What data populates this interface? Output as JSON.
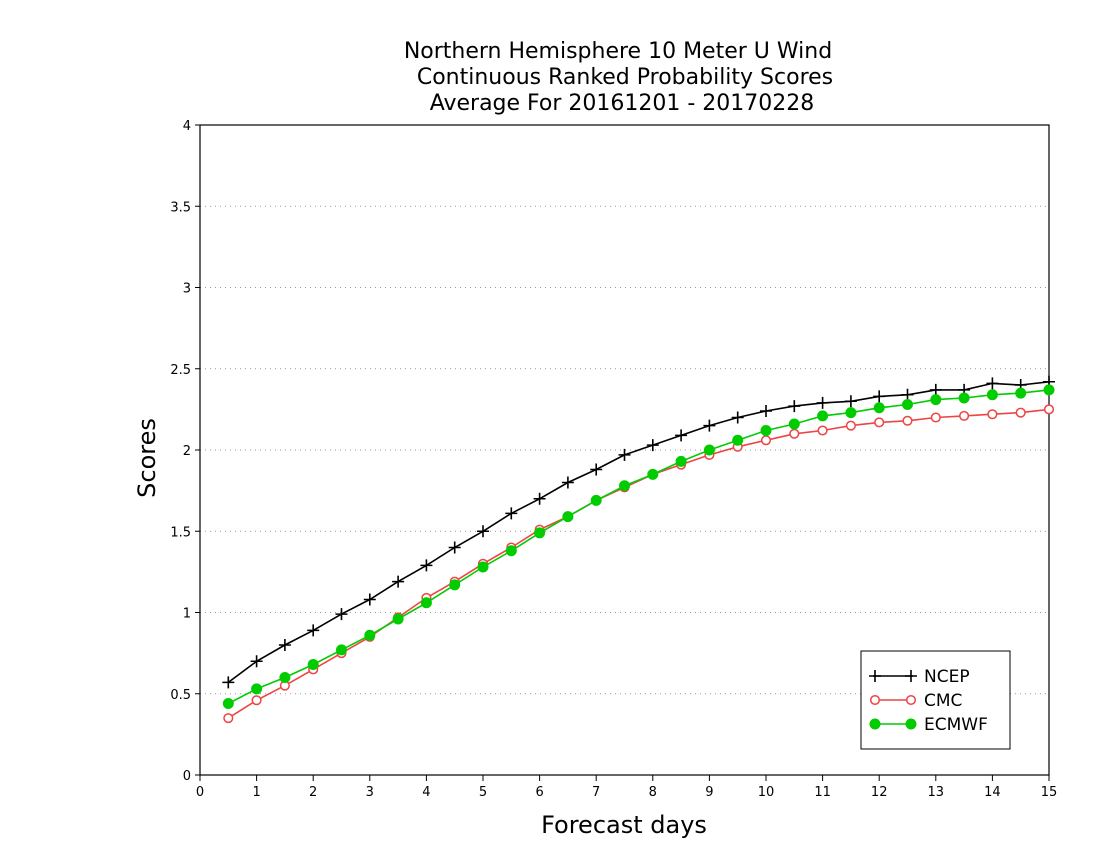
{
  "chart_data": {
    "type": "line",
    "title": [
      "Northern Hemisphere 10 Meter U Wind",
      "Continuous Ranked Probability Scores",
      "Average For 20161201 - 20170228"
    ],
    "xlabel": "Forecast days",
    "ylabel": "Scores",
    "xlim": [
      0,
      15
    ],
    "ylim": [
      0,
      4
    ],
    "xticks": [
      0,
      1,
      2,
      3,
      4,
      5,
      6,
      7,
      8,
      9,
      10,
      11,
      12,
      13,
      14,
      15
    ],
    "yticks": [
      0,
      0.5,
      1,
      1.5,
      2,
      2.5,
      3,
      3.5,
      4
    ],
    "grid": "horizontal dotted",
    "legend_position": "bottom-right",
    "x": [
      0.5,
      1,
      1.5,
      2,
      2.5,
      3,
      3.5,
      4,
      4.5,
      5,
      5.5,
      6,
      6.5,
      7,
      7.5,
      8,
      8.5,
      9,
      9.5,
      10,
      10.5,
      11,
      11.5,
      12,
      12.5,
      13,
      13.5,
      14,
      14.5,
      15
    ],
    "series": [
      {
        "name": "NCEP",
        "color": "#000000",
        "marker": "plus",
        "values": [
          0.57,
          0.7,
          0.8,
          0.89,
          0.99,
          1.08,
          1.19,
          1.29,
          1.4,
          1.5,
          1.61,
          1.7,
          1.8,
          1.88,
          1.97,
          2.03,
          2.09,
          2.15,
          2.2,
          2.24,
          2.27,
          2.29,
          2.3,
          2.33,
          2.34,
          2.37,
          2.37,
          2.41,
          2.4,
          2.42
        ]
      },
      {
        "name": "CMC",
        "color": "#ee4444",
        "marker": "open-circle",
        "values": [
          0.35,
          0.46,
          0.55,
          0.65,
          0.75,
          0.85,
          0.97,
          1.09,
          1.19,
          1.3,
          1.4,
          1.51,
          1.59,
          1.69,
          1.77,
          1.85,
          1.91,
          1.97,
          2.02,
          2.06,
          2.1,
          2.12,
          2.15,
          2.17,
          2.18,
          2.2,
          2.21,
          2.22,
          2.23,
          2.25
        ]
      },
      {
        "name": "ECMWF",
        "color": "#00cc00",
        "marker": "filled-circle",
        "values": [
          0.44,
          0.53,
          0.6,
          0.68,
          0.77,
          0.86,
          0.96,
          1.06,
          1.17,
          1.28,
          1.38,
          1.49,
          1.59,
          1.69,
          1.78,
          1.85,
          1.93,
          2.0,
          2.06,
          2.12,
          2.16,
          2.21,
          2.23,
          2.26,
          2.28,
          2.31,
          2.32,
          2.34,
          2.35,
          2.37
        ]
      }
    ]
  }
}
